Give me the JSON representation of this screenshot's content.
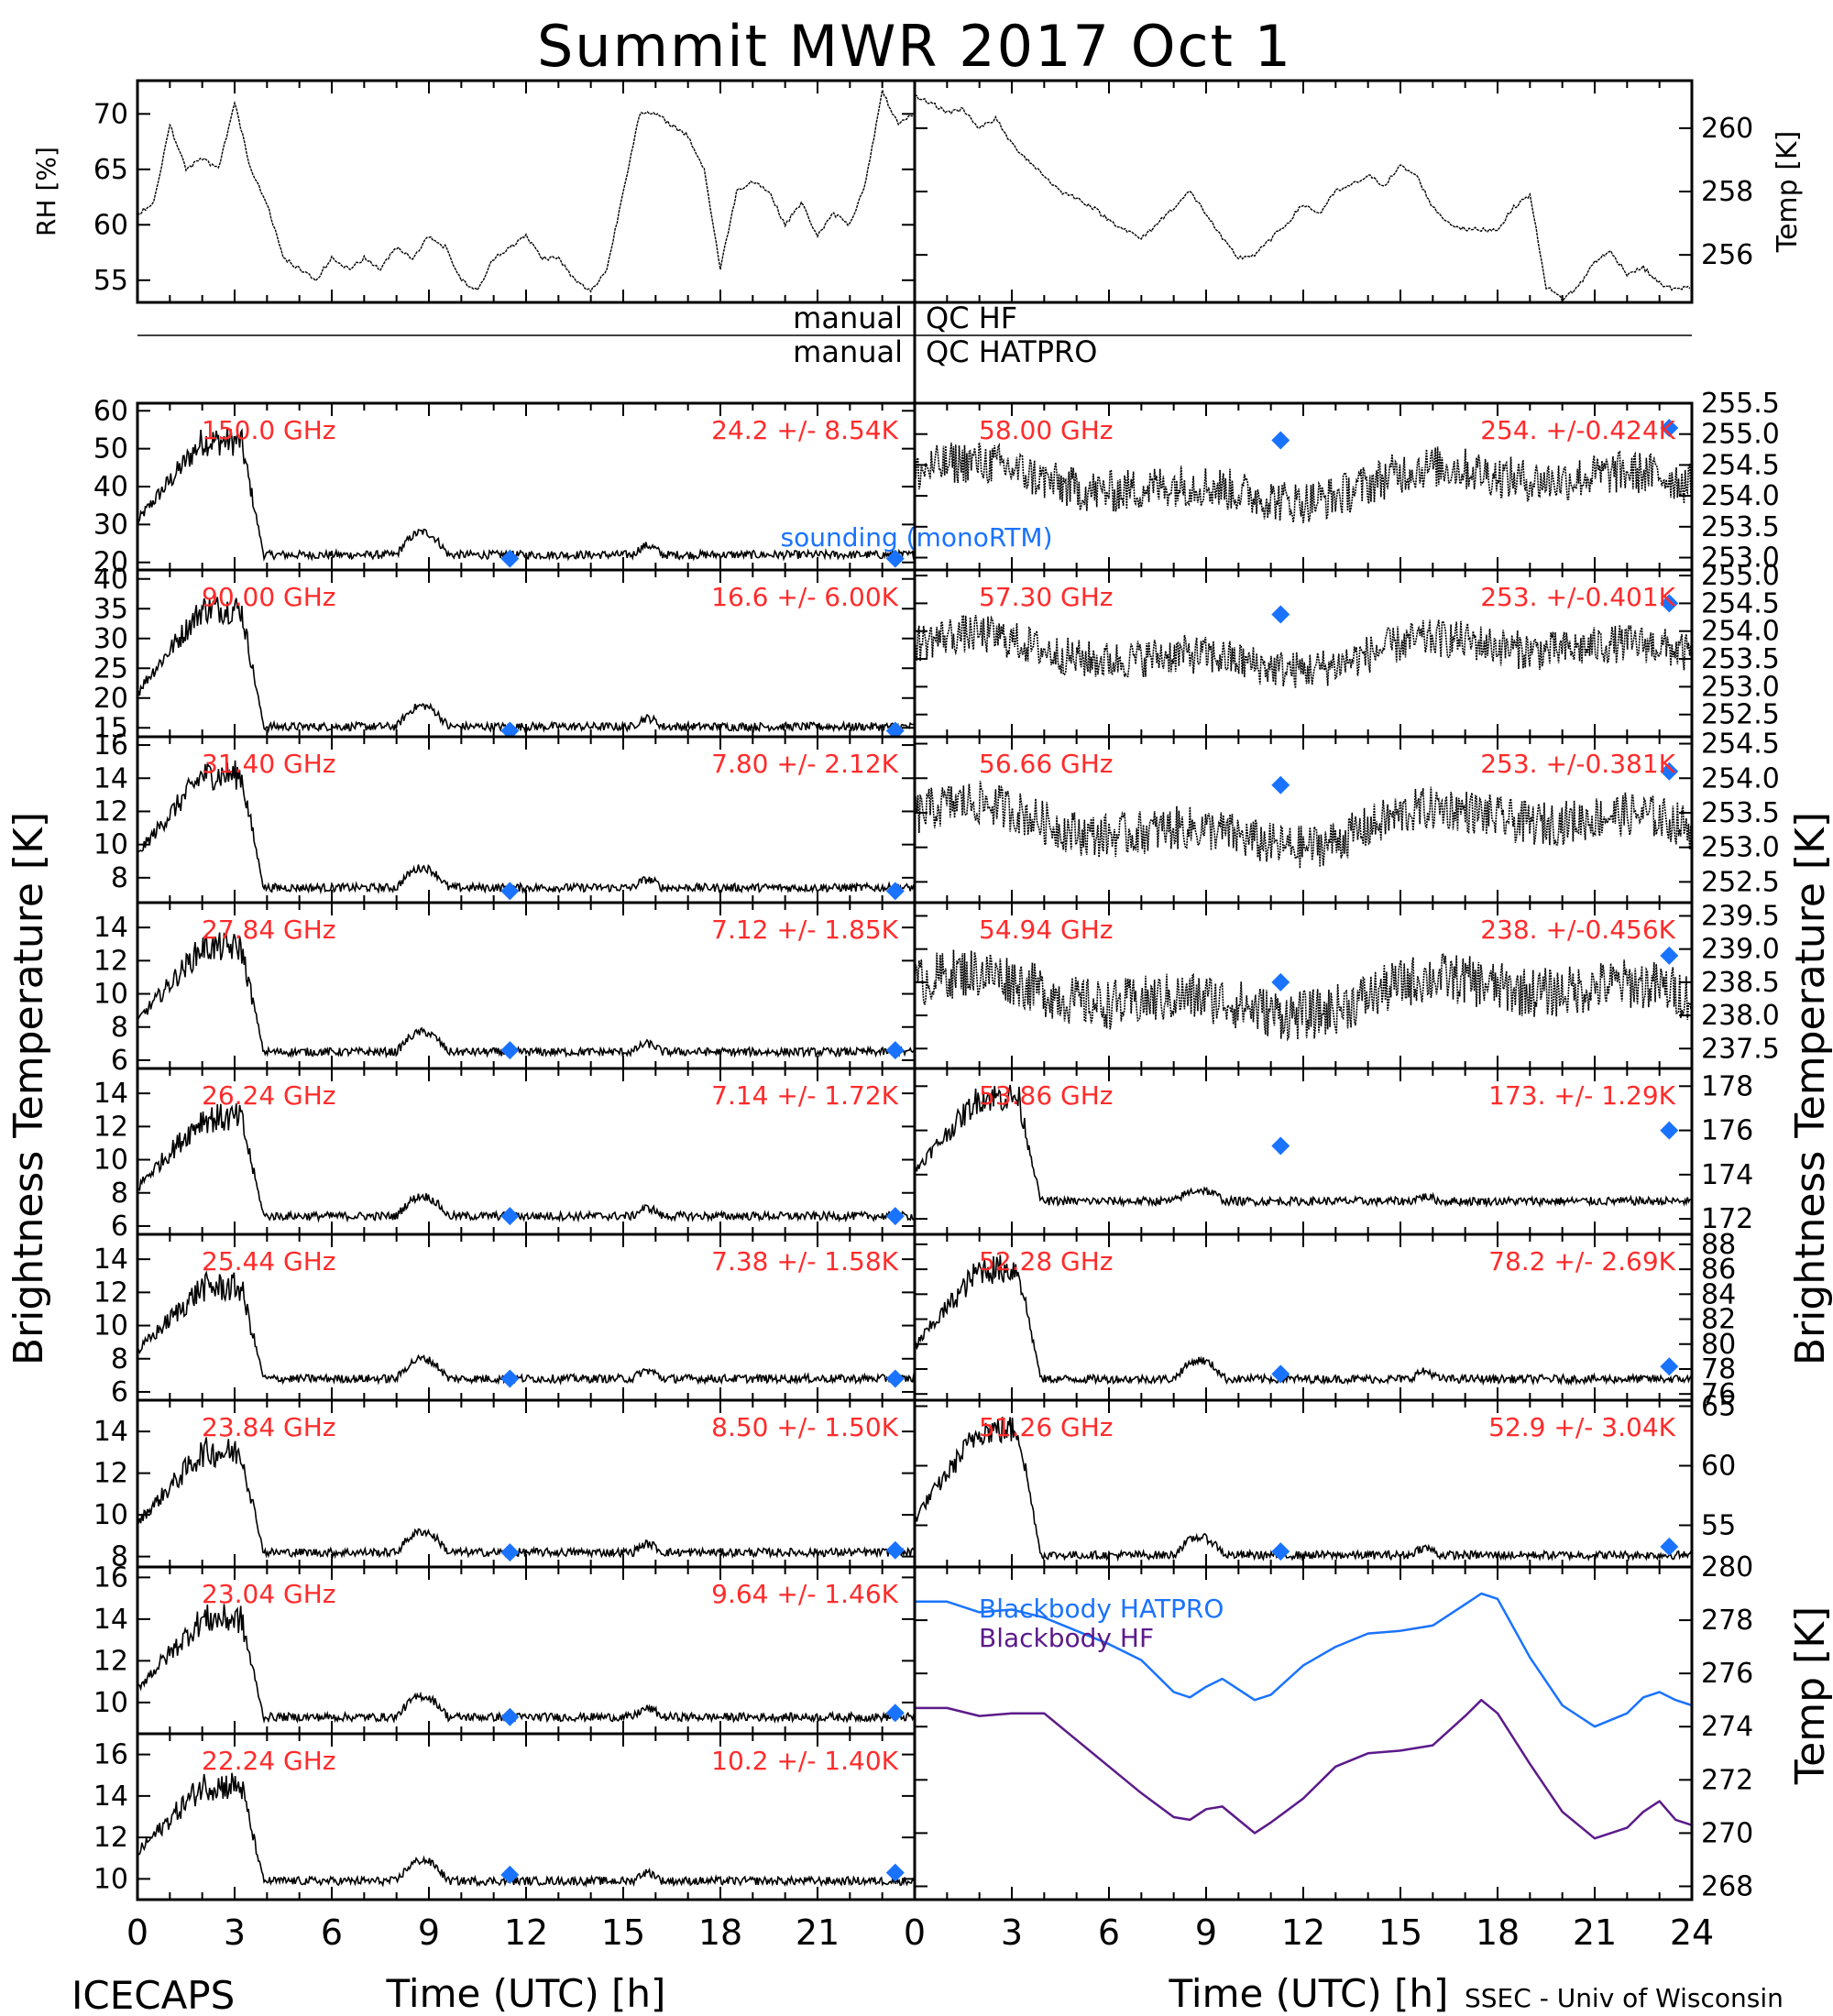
{
  "title": "Summit MWR 2017 Oct   1",
  "footer": {
    "left_label": "ICECAPS",
    "right_label": "SSEC - Univ of Wisconsin",
    "xlabel": "Time (UTC) [h]",
    "ylabel_left": "Brightness Temperature [K]",
    "ylabel_right_upper": "Brightness Temperature [K]",
    "ylabel_right_lower": "Temp [K]"
  },
  "colors": {
    "annotation": "#ff2b2b",
    "sounding": "#1a73ff",
    "hatpro": "#1a73ff",
    "hf": "#5b1a8a",
    "trace": "#000000"
  },
  "chart_data": [
    {
      "id": "met-rh",
      "type": "line",
      "ylabel": "RH [%]",
      "xlim": [
        0,
        24
      ],
      "ylim": [
        53,
        73
      ],
      "yticks": [
        55,
        60,
        65,
        70
      ],
      "x": [
        0,
        0.5,
        1,
        1.5,
        2,
        2.5,
        3,
        3.5,
        4,
        4.5,
        5,
        5.5,
        6,
        6.5,
        7,
        7.5,
        8,
        8.5,
        9,
        9.5,
        10,
        10.5,
        11,
        11.5,
        12,
        12.5,
        13,
        13.5,
        14,
        14.5,
        15,
        15.5,
        16,
        16.5,
        17,
        17.5,
        18,
        18.5,
        19,
        19.5,
        20,
        20.5,
        21,
        21.5,
        22,
        22.5,
        23,
        23.5,
        24
      ],
      "y": [
        61,
        62,
        69,
        65,
        66,
        65,
        71,
        65,
        62,
        57,
        56,
        55,
        57,
        56,
        57,
        56,
        58,
        57,
        59,
        58,
        55,
        54,
        57,
        58,
        59,
        57,
        57,
        55,
        54,
        56,
        63,
        70,
        70,
        69,
        68,
        65,
        56,
        63,
        64,
        63,
        60,
        62,
        59,
        61,
        60,
        64,
        72,
        69,
        70
      ]
    },
    {
      "id": "met-temp",
      "type": "line",
      "ylabel": "Temp [K]",
      "xlim": [
        0,
        24
      ],
      "ylim": [
        254.5,
        261.5
      ],
      "yticks": [
        256,
        258,
        260
      ],
      "x": [
        0,
        0.5,
        1,
        1.5,
        2,
        2.5,
        3,
        3.5,
        4,
        4.5,
        5,
        5.5,
        6,
        6.5,
        7,
        7.5,
        8,
        8.5,
        9,
        9.5,
        10,
        10.5,
        11,
        11.5,
        12,
        12.5,
        13,
        13.5,
        14,
        14.5,
        15,
        15.5,
        16,
        16.5,
        17,
        17.5,
        18,
        18.5,
        19,
        19.5,
        20,
        20.5,
        21,
        21.5,
        22,
        22.5,
        23,
        23.5,
        24
      ],
      "y": [
        261,
        260.8,
        260.5,
        260.6,
        260,
        260.3,
        259.5,
        259,
        258.5,
        258,
        257.8,
        257.5,
        257.1,
        256.8,
        256.5,
        257,
        257.5,
        258,
        257.3,
        256.5,
        255.9,
        256,
        256.5,
        257,
        257.6,
        257.3,
        258,
        258.2,
        258.5,
        258.2,
        258.8,
        258.5,
        257.5,
        257,
        256.8,
        256.8,
        256.8,
        257.5,
        257.9,
        255,
        254.6,
        255,
        255.8,
        256.1,
        255.4,
        255.6,
        255.1,
        254.9,
        255
      ]
    },
    {
      "id": "hf-150",
      "type": "line",
      "label": "150.0 GHz",
      "stats": "24.2 +/-  8.54K",
      "xlim": [
        0,
        24
      ],
      "ylim": [
        18,
        62
      ],
      "yticks": [
        20,
        30,
        40,
        50,
        60
      ],
      "base": 22,
      "peak": 52,
      "bump": 6,
      "sounding": [
        {
          "x": 11.5,
          "y": 21
        },
        {
          "x": 23.4,
          "y": 21
        }
      ],
      "sounding_label": "sounding (monoRTM)"
    },
    {
      "id": "hf-90",
      "type": "line",
      "label": "90.00 GHz",
      "stats": "16.6 +/-  6.00K",
      "xlim": [
        0,
        24
      ],
      "ylim": [
        13.5,
        41.5
      ],
      "yticks": [
        15,
        20,
        25,
        30,
        35,
        40
      ],
      "base": 15.2,
      "peak": 35,
      "bump": 3.5,
      "sounding": [
        {
          "x": 11.5,
          "y": 14.5
        },
        {
          "x": 23.4,
          "y": 14.5
        }
      ]
    },
    {
      "id": "hf-31",
      "type": "line",
      "label": "31.40 GHz",
      "stats": "7.80 +/- 2.12K",
      "xlim": [
        0,
        24
      ],
      "ylim": [
        6.5,
        16.5
      ],
      "yticks": [
        8,
        10,
        12,
        14,
        16
      ],
      "base": 7.4,
      "peak": 14.2,
      "bump": 1.2,
      "sounding": [
        {
          "x": 11.5,
          "y": 7.2
        },
        {
          "x": 23.4,
          "y": 7.2
        }
      ]
    },
    {
      "id": "hf-27",
      "type": "line",
      "label": "27.84 GHz",
      "stats": "7.12 +/- 1.85K",
      "xlim": [
        0,
        24
      ],
      "ylim": [
        5.5,
        15.5
      ],
      "yticks": [
        6,
        8,
        10,
        12,
        14
      ],
      "base": 6.5,
      "peak": 12.8,
      "bump": 1.2,
      "sounding": [
        {
          "x": 11.5,
          "y": 6.6
        },
        {
          "x": 23.4,
          "y": 6.6
        }
      ]
    },
    {
      "id": "hf-26",
      "type": "line",
      "label": "26.24 GHz",
      "stats": "7.14 +/- 1.72K",
      "xlim": [
        0,
        24
      ],
      "ylim": [
        5.5,
        15.5
      ],
      "yticks": [
        6,
        8,
        10,
        12,
        14
      ],
      "base": 6.6,
      "peak": 12.5,
      "bump": 1.2,
      "sounding": [
        {
          "x": 11.5,
          "y": 6.6
        },
        {
          "x": 23.4,
          "y": 6.6
        }
      ]
    },
    {
      "id": "hf-25",
      "type": "line",
      "label": "25.44 GHz",
      "stats": "7.38 +/- 1.58K",
      "xlim": [
        0,
        24
      ],
      "ylim": [
        5.5,
        15.5
      ],
      "yticks": [
        6,
        8,
        10,
        12,
        14
      ],
      "base": 6.8,
      "peak": 12.3,
      "bump": 1.2,
      "sounding": [
        {
          "x": 11.5,
          "y": 6.8
        },
        {
          "x": 23.4,
          "y": 6.8
        }
      ]
    },
    {
      "id": "hf-23",
      "type": "line",
      "label": "23.84 GHz",
      "stats": "8.50 +/- 1.50K",
      "xlim": [
        0,
        24
      ],
      "ylim": [
        7.5,
        15.5
      ],
      "yticks": [
        8,
        10,
        12,
        14
      ],
      "base": 8.2,
      "peak": 13,
      "bump": 1,
      "sounding": [
        {
          "x": 11.5,
          "y": 8.2
        },
        {
          "x": 23.4,
          "y": 8.3
        }
      ]
    },
    {
      "id": "hf-23b",
      "type": "line",
      "label": "23.04 GHz",
      "stats": "9.64 +/- 1.46K",
      "xlim": [
        0,
        24
      ],
      "ylim": [
        8.5,
        16.5
      ],
      "yticks": [
        10,
        12,
        14,
        16
      ],
      "base": 9.3,
      "peak": 14,
      "bump": 1,
      "sounding": [
        {
          "x": 11.5,
          "y": 9.3
        },
        {
          "x": 23.4,
          "y": 9.5
        }
      ]
    },
    {
      "id": "hf-22",
      "type": "line",
      "label": "22.24 GHz",
      "stats": "10.2 +/- 1.40K",
      "xlim": [
        0,
        24
      ],
      "ylim": [
        9,
        17
      ],
      "yticks": [
        10,
        12,
        14,
        16
      ],
      "base": 9.9,
      "peak": 14.5,
      "bump": 1,
      "sounding": [
        {
          "x": 11.5,
          "y": 10.2
        },
        {
          "x": 23.4,
          "y": 10.3
        }
      ]
    },
    {
      "id": "hp-58",
      "type": "line",
      "label": "58.00 GHz",
      "stats": "254. +/-0.424K",
      "xlim": [
        0,
        24
      ],
      "ylim": [
        252.8,
        255.5
      ],
      "ytick_labels": [
        "253.0",
        "253.5",
        "254.0",
        "254.5",
        "255.0",
        "255.5"
      ],
      "yticks": [
        253,
        253.5,
        254,
        254.5,
        255,
        255.5
      ],
      "mode": "flat",
      "base": 254.2,
      "noise": 0.35,
      "sounding": [
        {
          "x": 11.3,
          "y": 254.9
        },
        {
          "x": 23.3,
          "y": 255.1
        }
      ]
    },
    {
      "id": "hp-57",
      "type": "line",
      "label": "57.30 GHz",
      "stats": "253. +/-0.401K",
      "xlim": [
        0,
        24
      ],
      "ylim": [
        252.1,
        255.1
      ],
      "ytick_labels": [
        "252.5",
        "253.0",
        "253.5",
        "254.0",
        "254.5",
        "255.0"
      ],
      "yticks": [
        252.5,
        253,
        253.5,
        254,
        254.5,
        255
      ],
      "mode": "flat",
      "base": 253.6,
      "noise": 0.35,
      "sounding": [
        {
          "x": 11.3,
          "y": 254.3
        },
        {
          "x": 23.3,
          "y": 254.5
        }
      ]
    },
    {
      "id": "hp-56",
      "type": "line",
      "label": "56.66 GHz",
      "stats": "253. +/-0.381K",
      "xlim": [
        0,
        24
      ],
      "ylim": [
        252.2,
        254.6
      ],
      "ytick_labels": [
        "252.5",
        "253.0",
        "253.5",
        "254.0",
        "254.5"
      ],
      "yticks": [
        252.5,
        253,
        253.5,
        254,
        254.5
      ],
      "mode": "flat",
      "base": 253.3,
      "noise": 0.32,
      "sounding": [
        {
          "x": 11.3,
          "y": 253.9
        },
        {
          "x": 23.3,
          "y": 254.1
        }
      ]
    },
    {
      "id": "hp-54",
      "type": "line",
      "label": "54.94 GHz",
      "stats": "238. +/-0.456K",
      "xlim": [
        0,
        24
      ],
      "ylim": [
        237.2,
        239.7
      ],
      "ytick_labels": [
        "237.5",
        "238.0",
        "238.5",
        "239.0",
        "239.5"
      ],
      "yticks": [
        237.5,
        238,
        238.5,
        239,
        239.5
      ],
      "mode": "flat",
      "base": 238.3,
      "noise": 0.38,
      "sounding": [
        {
          "x": 11.3,
          "y": 238.5
        },
        {
          "x": 23.3,
          "y": 238.9
        }
      ]
    },
    {
      "id": "hp-53",
      "type": "line",
      "label": "53.86 GHz",
      "stats": "173. +/- 1.29K",
      "xlim": [
        0,
        24
      ],
      "ylim": [
        171.3,
        178.8
      ],
      "yticks": [
        172,
        174,
        176,
        178
      ],
      "base": 172.8,
      "peak": 177.5,
      "bump": 0.5,
      "sounding": [
        {
          "x": 11.3,
          "y": 175.3
        },
        {
          "x": 23.3,
          "y": 176
        }
      ]
    },
    {
      "id": "hp-52",
      "type": "line",
      "label": "52.28 GHz",
      "stats": "78.2 +/- 2.69K",
      "xlim": [
        0,
        24
      ],
      "ylim": [
        75.5,
        88.8
      ],
      "yticks": [
        76,
        78,
        80,
        82,
        84,
        86,
        88
      ],
      "base": 77.2,
      "peak": 86,
      "bump": 1.5,
      "sounding": [
        {
          "x": 11.3,
          "y": 77.6
        },
        {
          "x": 23.3,
          "y": 78.2
        }
      ]
    },
    {
      "id": "hp-51",
      "type": "line",
      "label": "51.26 GHz",
      "stats": "52.9 +/- 3.04K",
      "xlim": [
        0,
        24
      ],
      "ylim": [
        51.5,
        65.5
      ],
      "yticks": [
        55,
        60,
        65
      ],
      "base": 52.5,
      "peak": 63,
      "bump": 1.5,
      "sounding": [
        {
          "x": 11.3,
          "y": 52.8
        },
        {
          "x": 23.3,
          "y": 53.2
        }
      ]
    },
    {
      "id": "blackbody",
      "type": "line",
      "xlim": [
        0,
        24
      ],
      "ylim": [
        267.5,
        280
      ],
      "yticks": [
        268,
        270,
        272,
        274,
        276,
        278,
        280
      ],
      "series": [
        {
          "name": "Blackbody HATPRO",
          "x": [
            0,
            1,
            2,
            3,
            4,
            5,
            6,
            7,
            8,
            8.5,
            9,
            9.5,
            10,
            10.5,
            11,
            12,
            13,
            14,
            15,
            16,
            17,
            17.5,
            18,
            19,
            20,
            21,
            22,
            22.5,
            23,
            23.5,
            24
          ],
          "y": [
            278.7,
            278.7,
            278.3,
            278.4,
            278.1,
            277.6,
            277.1,
            276.5,
            275.3,
            275.1,
            275.5,
            275.8,
            275.4,
            275,
            275.2,
            276.3,
            277,
            277.5,
            277.6,
            277.8,
            278.6,
            279,
            278.8,
            276.6,
            274.8,
            274,
            274.5,
            275.1,
            275.3,
            275,
            274.8
          ]
        },
        {
          "name": "Blackbody HF",
          "x": [
            0,
            1,
            2,
            3,
            4,
            5,
            6,
            7,
            8,
            8.5,
            9,
            9.5,
            10,
            10.5,
            11,
            12,
            13,
            14,
            15,
            16,
            17,
            17.5,
            18,
            19,
            20,
            21,
            22,
            22.5,
            23,
            23.5,
            24
          ],
          "y": [
            274.7,
            274.7,
            274.4,
            274.5,
            274.5,
            273.5,
            272.5,
            271.5,
            270.6,
            270.5,
            270.9,
            271,
            270.5,
            270,
            270.4,
            271.3,
            272.5,
            273,
            273.1,
            273.3,
            274.4,
            275,
            274.5,
            272.6,
            270.8,
            269.8,
            270.2,
            270.8,
            271.2,
            270.5,
            270.3
          ]
        }
      ]
    }
  ]
}
